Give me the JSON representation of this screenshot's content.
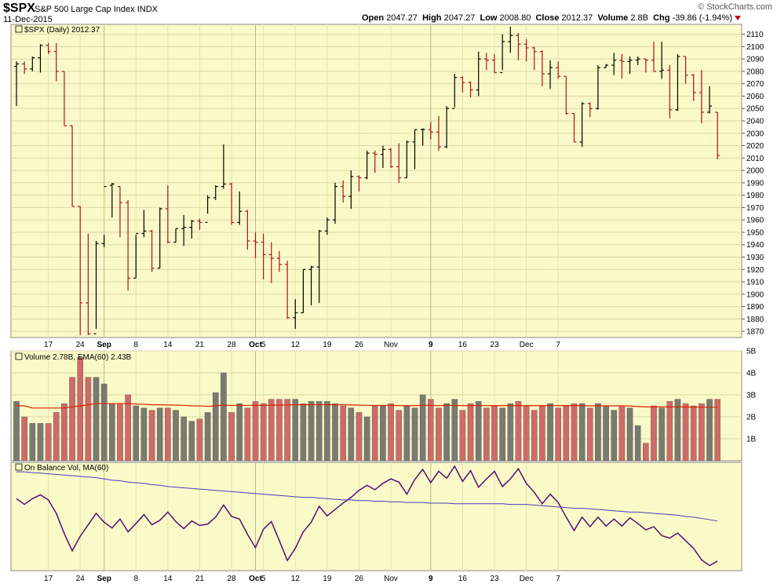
{
  "header": {
    "symbol": "$SPX",
    "description": "S&P 500 Large Cap Index",
    "exchange": "INDX",
    "date": "11-Dec-2015",
    "open_label": "Open",
    "open": "2047.27",
    "high_label": "High",
    "high": "2047.27",
    "low_label": "Low",
    "low": "2008.80",
    "close_label": "Close",
    "close": "2012.37",
    "volume_label": "Volume",
    "volume": "2.8B",
    "chg_label": "Chg",
    "chg": "-39.86 (-1.94%)",
    "watermark": "© StockCharts.com"
  },
  "colors": {
    "panel_bg": "#fafac8",
    "up": "#000000",
    "down": "#b01020",
    "vol_up": "#7a7a72",
    "vol_down": "#d06a6a",
    "ema": "#dd2200",
    "obv": "#5a0a78",
    "obv_ma": "#4a3ac0"
  },
  "chart_data": [
    {
      "type": "ohlc",
      "title": "$SPX (Daily) 2012.37",
      "ylim": [
        1865,
        2118
      ],
      "yticks": [
        1870,
        1880,
        1890,
        1900,
        1910,
        1920,
        1930,
        1940,
        1950,
        1960,
        1970,
        1980,
        1990,
        2000,
        2010,
        2020,
        2030,
        2040,
        2050,
        2060,
        2070,
        2080,
        2090,
        2100,
        2110
      ],
      "x_tick_labels": [
        "17",
        "24",
        "Sep",
        "8",
        "14",
        "21",
        "28",
        "Oct",
        "5",
        "12",
        "19",
        "26",
        "Nov",
        "9",
        "16",
        "23",
        "Dec",
        "7"
      ],
      "bars": [
        [
          2084,
          2088,
          2052,
          2086
        ],
        [
          2086,
          2088,
          2078,
          2082
        ],
        [
          2082,
          2092,
          2080,
          2091
        ],
        [
          2091,
          2102,
          2079,
          2101
        ],
        [
          2101,
          2103,
          2094,
          2096
        ],
        [
          2096,
          2103,
          2072,
          2080
        ],
        [
          2080,
          2080,
          2036,
          2036
        ],
        [
          2036,
          2036,
          1971,
          1971
        ],
        [
          1971,
          1971,
          1867,
          1893
        ],
        [
          1893,
          1949,
          1867,
          1868
        ],
        [
          1868,
          1943,
          1872,
          1941
        ],
        [
          1941,
          1948,
          1938,
          1987
        ],
        [
          1988,
          1990,
          1962,
          1989
        ],
        [
          1987,
          1987,
          1946,
          1974
        ],
        [
          1974,
          1976,
          1903,
          1913
        ],
        [
          1913,
          1948,
          1913,
          1949
        ],
        [
          1949,
          1968,
          1946,
          1951
        ],
        [
          1951,
          1952,
          1918,
          1921
        ],
        [
          1921,
          1970,
          1921,
          1969
        ],
        [
          1969,
          1988,
          1941,
          1942
        ],
        [
          1942,
          1953,
          1942,
          1953
        ],
        [
          1953,
          1964,
          1939,
          1954
        ],
        [
          1954,
          1960,
          1945,
          1959
        ],
        [
          1959,
          1961,
          1952,
          1958
        ],
        [
          1958,
          1980,
          1965,
          1978
        ],
        [
          1978,
          1988,
          1976,
          1987
        ],
        [
          1987,
          2021,
          1985,
          1989
        ],
        [
          1989,
          1990,
          1956,
          1958
        ],
        [
          1958,
          1983,
          1956,
          1967
        ],
        [
          1967,
          1968,
          1936,
          1943
        ],
        [
          1943,
          1950,
          1929,
          1942
        ],
        [
          1942,
          1949,
          1912,
          1932
        ],
        [
          1932,
          1942,
          1909,
          1929
        ],
        [
          1929,
          1935,
          1918,
          1924
        ],
        [
          1924,
          1927,
          1880,
          1881
        ],
        [
          1881,
          1896,
          1872,
          1885
        ],
        [
          1885,
          1920,
          1885,
          1920
        ],
        [
          1920,
          1923,
          1891,
          1922
        ],
        [
          1922,
          1952,
          1893,
          1951
        ],
        [
          1951,
          1962,
          1948,
          1960
        ],
        [
          1960,
          1990,
          1957,
          1987
        ],
        [
          1987,
          1992,
          1974,
          1979
        ],
        [
          1979,
          2000,
          1969,
          1995
        ],
        [
          1995,
          1996,
          1983,
          1994
        ],
        [
          1994,
          2016,
          1993,
          2014
        ],
        [
          2014,
          2016,
          1998,
          2013
        ],
        [
          2013,
          2020,
          2002,
          2017
        ],
        [
          2017,
          2018,
          2002,
          2003
        ],
        [
          2003,
          2022,
          1990,
          1994
        ],
        [
          1994,
          2024,
          1994,
          2023
        ],
        [
          2023,
          2033,
          2001,
          2033
        ],
        [
          2033,
          2034,
          2020,
          2033
        ],
        [
          2033,
          2039,
          2025,
          2031
        ],
        [
          2031,
          2044,
          2016,
          2019
        ],
        [
          2019,
          2052,
          2018,
          2050
        ],
        [
          2050,
          2078,
          2051,
          2075
        ],
        [
          2075,
          2076,
          2063,
          2071
        ],
        [
          2071,
          2072,
          2059,
          2065
        ],
        [
          2065,
          2096,
          2060,
          2090
        ],
        [
          2090,
          2095,
          2081,
          2089
        ],
        [
          2089,
          2094,
          2079,
          2079
        ],
        [
          2079,
          2110,
          2081,
          2104
        ],
        [
          2104,
          2116,
          2095,
          2109
        ],
        [
          2109,
          2111,
          2089,
          2102
        ],
        [
          2102,
          2106,
          2088,
          2099
        ],
        [
          2099,
          2100,
          2081,
          2096
        ],
        [
          2096,
          2097,
          2068,
          2078
        ],
        [
          2078,
          2089,
          2066,
          2083
        ],
        [
          2083,
          2088,
          2074,
          2076
        ],
        [
          2076,
          2076,
          2045,
          2046
        ],
        [
          2046,
          2046,
          2023,
          2023
        ],
        [
          2023,
          2055,
          2019,
          2054
        ],
        [
          2054,
          2055,
          2043,
          2050
        ],
        [
          2050,
          2085,
          2049,
          2083
        ],
        [
          2083,
          2086,
          2083,
          2085
        ],
        [
          2085,
          2095,
          2077,
          2089
        ],
        [
          2089,
          2094,
          2074,
          2088
        ],
        [
          2088,
          2092,
          2078,
          2089
        ],
        [
          2089,
          2092,
          2085,
          2090
        ],
        [
          2090,
          2090,
          2079,
          2089
        ],
        [
          2089,
          2104,
          2080,
          2080
        ],
        [
          2080,
          2104,
          2074,
          2081
        ],
        [
          2081,
          2085,
          2042,
          2049
        ],
        [
          2049,
          2094,
          2048,
          2092
        ],
        [
          2092,
          2092,
          2070,
          2077
        ],
        [
          2077,
          2078,
          2056,
          2063
        ],
        [
          2063,
          2081,
          2038,
          2047
        ],
        [
          2047,
          2068,
          2046,
          2052
        ],
        [
          2047,
          2047,
          2009,
          2012
        ]
      ]
    },
    {
      "type": "bar",
      "title": "Volume 2.78B, EMA(60) 2.43B",
      "ylim": [
        0,
        5
      ],
      "yticks": [
        "1B",
        "2B",
        "3B",
        "4B",
        "5B"
      ],
      "values": [
        2.7,
        2.0,
        1.7,
        1.7,
        1.7,
        2.2,
        2.6,
        3.8,
        4.7,
        3.8,
        3.8,
        3.5,
        2.6,
        2.6,
        3.0,
        2.5,
        2.4,
        2.3,
        2.4,
        2.4,
        2.3,
        2.0,
        1.8,
        1.9,
        2.2,
        3.1,
        4.0,
        2.2,
        2.6,
        2.4,
        2.7,
        2.6,
        2.8,
        2.8,
        2.8,
        2.8,
        2.6,
        2.7,
        2.7,
        2.7,
        2.6,
        2.5,
        2.4,
        2.2,
        2.0,
        2.5,
        2.5,
        2.6,
        2.3,
        2.5,
        2.4,
        3.0,
        2.8,
        2.4,
        2.6,
        2.8,
        2.3,
        2.6,
        2.7,
        2.4,
        2.5,
        2.4,
        2.6,
        2.7,
        2.5,
        2.3,
        2.5,
        2.6,
        2.4,
        2.5,
        2.6,
        2.6,
        2.4,
        2.6,
        2.5,
        2.3,
        2.5,
        2.4,
        1.6,
        0.8,
        2.5,
        2.4,
        2.7,
        2.8,
        2.6,
        2.5,
        2.6,
        2.8,
        2.8
      ],
      "ema": [
        2.5,
        2.5,
        2.4,
        2.4,
        2.4,
        2.4,
        2.4,
        2.45,
        2.5,
        2.55,
        2.6,
        2.6,
        2.6,
        2.6,
        2.6,
        2.58,
        2.57,
        2.55,
        2.55,
        2.54,
        2.53,
        2.52,
        2.5,
        2.49,
        2.48,
        2.5,
        2.53,
        2.52,
        2.52,
        2.52,
        2.52,
        2.52,
        2.53,
        2.53,
        2.54,
        2.55,
        2.55,
        2.55,
        2.55,
        2.55,
        2.55,
        2.55,
        2.54,
        2.53,
        2.52,
        2.52,
        2.52,
        2.52,
        2.51,
        2.51,
        2.51,
        2.52,
        2.52,
        2.51,
        2.52,
        2.52,
        2.51,
        2.51,
        2.52,
        2.51,
        2.51,
        2.51,
        2.51,
        2.51,
        2.51,
        2.51,
        2.51,
        2.51,
        2.51,
        2.51,
        2.51,
        2.51,
        2.5,
        2.5,
        2.5,
        2.5,
        2.5,
        2.49,
        2.47,
        2.45,
        2.45,
        2.45,
        2.45,
        2.45,
        2.45,
        2.44,
        2.44,
        2.44,
        2.43
      ]
    },
    {
      "type": "line",
      "title": "On Balance Vol, MA(60)",
      "obv": [
        93,
        84,
        93,
        99,
        91,
        70,
        38,
        11,
        34,
        52,
        70,
        56,
        47,
        61,
        41,
        54,
        68,
        52,
        59,
        72,
        57,
        46,
        58,
        51,
        53,
        64,
        83,
        65,
        61,
        37,
        16,
        45,
        57,
        27,
        -4,
        15,
        41,
        56,
        81,
        66,
        76,
        86,
        95,
        106,
        114,
        107,
        117,
        124,
        119,
        100,
        123,
        139,
        118,
        136,
        125,
        144,
        120,
        137,
        111,
        124,
        136,
        112,
        124,
        140,
        117,
        103,
        85,
        100,
        87,
        64,
        43,
        64,
        49,
        64,
        50,
        61,
        50,
        63,
        54,
        44,
        49,
        35,
        31,
        39,
        27,
        15,
        -3,
        -12,
        -5
      ],
      "ma": [
        135,
        135,
        134,
        133,
        132,
        131,
        130,
        129,
        128,
        127,
        126,
        124,
        122,
        121,
        119,
        118,
        117,
        115,
        114,
        112,
        111,
        110,
        109,
        108,
        107,
        106,
        105,
        104,
        103,
        102,
        101,
        100,
        99,
        98,
        97,
        96,
        95,
        95,
        94,
        93,
        92,
        91,
        91,
        90,
        90,
        89,
        89,
        88,
        88,
        87,
        87,
        87,
        86,
        86,
        86,
        85,
        85,
        85,
        85,
        85,
        85,
        85,
        84,
        84,
        84,
        83,
        82,
        81,
        80,
        79,
        78,
        78,
        77,
        76,
        75,
        74,
        73,
        72,
        72,
        71,
        70,
        69,
        68,
        67,
        65,
        64,
        62,
        60,
        58
      ],
      "ylim": [
        -20,
        150
      ]
    }
  ]
}
